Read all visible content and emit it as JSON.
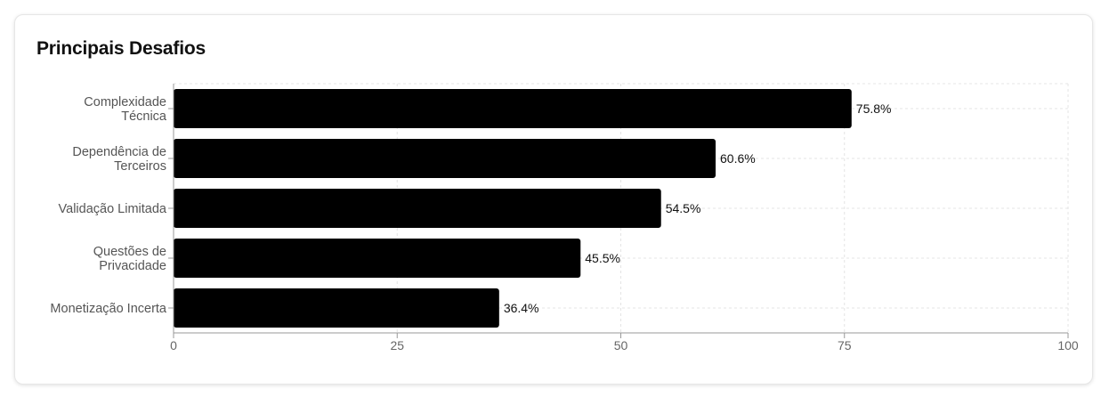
{
  "card": {
    "title": "Principais Desafios"
  },
  "chart_data": {
    "type": "bar",
    "orientation": "horizontal",
    "title": "Principais Desafios",
    "categories": [
      [
        "Complexidade",
        "Técnica"
      ],
      [
        "Dependência de",
        "Terceiros"
      ],
      [
        "Validação Limitada"
      ],
      [
        "Questões de",
        "Privacidade"
      ],
      [
        "Monetização Incerta"
      ]
    ],
    "values": [
      75.8,
      60.6,
      54.5,
      45.5,
      36.4
    ],
    "value_labels": [
      "75.8%",
      "60.6%",
      "54.5%",
      "45.5%",
      "36.4%"
    ],
    "xlim": [
      0,
      100
    ],
    "xticks": [
      0,
      25,
      50,
      75,
      100
    ],
    "xlabel": "",
    "ylabel": "",
    "grid": true,
    "bar_color": "#000000",
    "grid_color": "#e4e4e4",
    "axis_color": "#999999"
  }
}
